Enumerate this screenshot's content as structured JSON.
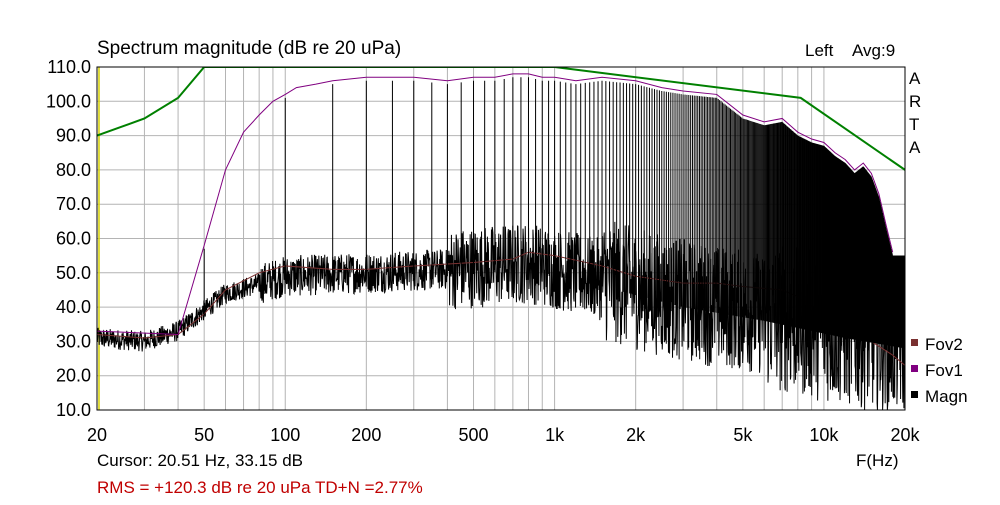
{
  "chart_data": {
    "type": "line",
    "title": "Spectrum magnitude (dB re 20 uPa)",
    "channel_label": "Left",
    "avg_label": "Avg:9",
    "brand_letters": [
      "A",
      "R",
      "T",
      "A"
    ],
    "xlabel": "F(Hz)",
    "x_scale": "log",
    "xlim": [
      20,
      20000
    ],
    "ylim": [
      10,
      110
    ],
    "x_ticks": [
      {
        "v": 20,
        "label": "20"
      },
      {
        "v": 50,
        "label": "50"
      },
      {
        "v": 100,
        "label": "100"
      },
      {
        "v": 200,
        "label": "200"
      },
      {
        "v": 500,
        "label": "500"
      },
      {
        "v": 1000,
        "label": "1k"
      },
      {
        "v": 2000,
        "label": "2k"
      },
      {
        "v": 5000,
        "label": "5k"
      },
      {
        "v": 10000,
        "label": "10k"
      },
      {
        "v": 20000,
        "label": "20k"
      }
    ],
    "y_ticks": [
      "10.0",
      "20.0",
      "30.0",
      "40.0",
      "50.0",
      "60.0",
      "70.0",
      "80.0",
      "90.0",
      "100.0",
      "110.0"
    ],
    "grid": true,
    "legend_position": "right-bottom",
    "colors": {
      "Magn": "#000000",
      "Fov1": "#800080",
      "Fov2": "#7a3030",
      "limit": "#008000"
    },
    "series": [
      {
        "name": "Fov1",
        "x": [
          20,
          40,
          50,
          60,
          70,
          80,
          90,
          100,
          110,
          130,
          150,
          200,
          250,
          300,
          400,
          500,
          600,
          700,
          800,
          900,
          1000,
          1200,
          1500,
          2000,
          2500,
          3000,
          4000,
          5000,
          6000,
          7000,
          8000,
          9000,
          10000,
          11000,
          12000,
          13000,
          14000,
          15000,
          16000,
          17000,
          18000
        ],
        "y": [
          33,
          32,
          58,
          80,
          91,
          96,
          100,
          102,
          104,
          105,
          106,
          107,
          107,
          107,
          106,
          107,
          107,
          108,
          108,
          107,
          107,
          106,
          107,
          106,
          104,
          103,
          102,
          96,
          94,
          95,
          91,
          89,
          88,
          85,
          83,
          80,
          82,
          79,
          73,
          64,
          56
        ]
      },
      {
        "name": "Fov2",
        "x": [
          20,
          30,
          40,
          50,
          60,
          80,
          100,
          150,
          200,
          300,
          500,
          700,
          800,
          1000,
          1500,
          2000,
          3000,
          4000,
          5000,
          7000,
          8000,
          10000,
          12000,
          15000,
          18000,
          20000
        ],
        "y": [
          32,
          31,
          32,
          38,
          45,
          50,
          52,
          51,
          51,
          52,
          53,
          54,
          56,
          55,
          52,
          49,
          47,
          47,
          46,
          45,
          43,
          38,
          34,
          30,
          26,
          23
        ]
      },
      {
        "name": "Magn",
        "x": [
          20,
          30,
          40,
          60,
          100,
          200,
          400,
          800,
          1500,
          3000,
          6000,
          12000,
          20000
        ],
        "y": [
          31,
          30,
          33,
          44,
          49,
          50,
          51,
          53,
          48,
          42,
          38,
          33,
          30
        ]
      },
      {
        "name": "limit",
        "x": [
          20,
          30,
          40,
          50,
          1000,
          8200,
          20000
        ],
        "y": [
          90,
          95,
          101,
          110,
          110,
          101,
          80
        ]
      }
    ],
    "legend": [
      "Fov2",
      "Fov1",
      "Magn"
    ],
    "cursor_text": "Cursor: 20.51 Hz, 33.15 dB",
    "rms_text": "RMS = +120.3 dB re 20 uPa  TD+N =2.77%"
  }
}
